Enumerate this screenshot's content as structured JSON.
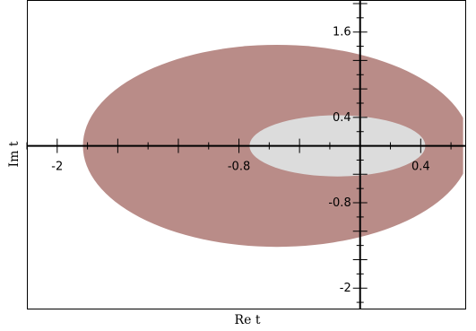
{
  "chart_data": {
    "type": "area",
    "title": "",
    "xlabel": "Re t",
    "ylabel": "Im t",
    "xlim": [
      -2.2,
      0.7
    ],
    "ylim": [
      -2.3,
      2.05
    ],
    "x_ticks": [
      -2,
      -0.8,
      0.4
    ],
    "y_ticks": [
      1.6,
      0.4,
      -0.8,
      -2
    ],
    "x_tick_labels": [
      "-2",
      "-0.8",
      "0.4"
    ],
    "y_tick_labels": [
      "1.6",
      "0.4",
      "-0.8",
      "-2"
    ],
    "grid": false,
    "regions": [
      {
        "shape": "ellipse",
        "color": "#b98c88",
        "center": [
          -0.55,
          0.0
        ],
        "semi_axes": [
          1.28,
          1.42
        ],
        "clip_x": [
          -2.02,
          0.68
        ]
      },
      {
        "shape": "ellipse",
        "color": "#dcdcdc",
        "center": [
          -0.15,
          0.0
        ],
        "semi_axes": [
          0.58,
          0.43
        ]
      }
    ]
  }
}
